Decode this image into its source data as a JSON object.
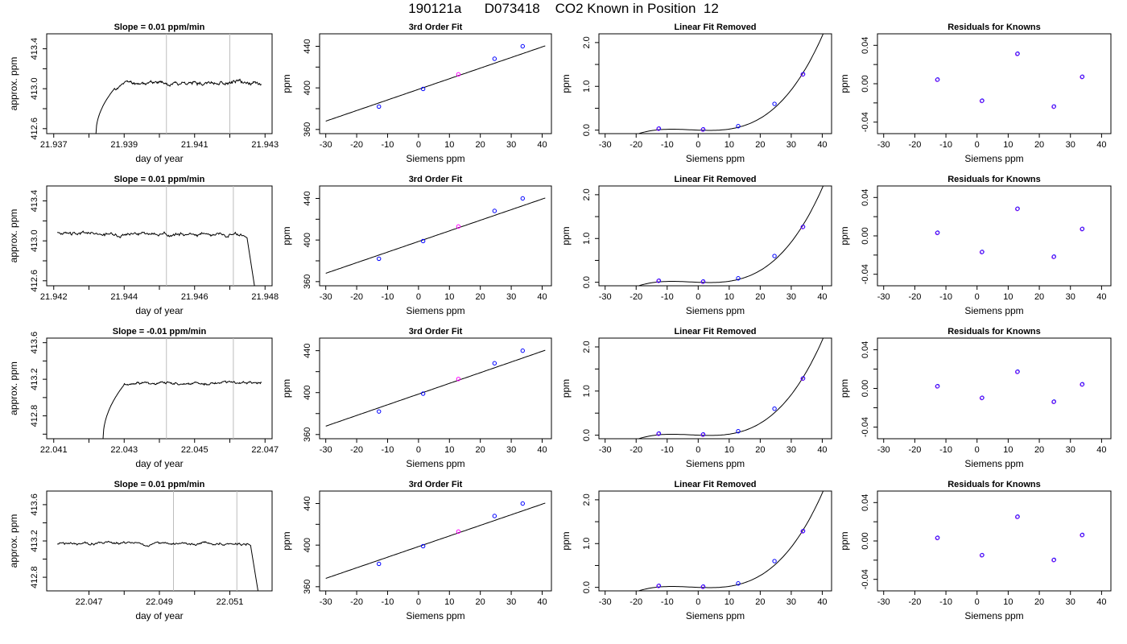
{
  "figure": {
    "title": "190121a      D073418    CO2 Known in Position  12"
  },
  "colors": {
    "frame": "#000000",
    "trace": "#000000",
    "vline": "#bebebe",
    "blue": "#0000ff",
    "magenta": "#ff00ff",
    "purple": "#a020f0",
    "orange": "#ffa500",
    "green": "#00cd00"
  },
  "chart_data": [
    {
      "type": "line",
      "title": "Slope =  0.01  ppm/min",
      "xlabel": "day of year",
      "ylabel": "approx. ppm",
      "xlim": [
        21.9368,
        21.9432
      ],
      "ylim": [
        412.55,
        413.55
      ],
      "xticks": [
        21.937,
        21.938,
        21.939,
        21.94,
        21.941,
        21.942,
        21.943
      ],
      "xtick_labels": [
        "21.937",
        "",
        "21.939",
        "",
        "21.941",
        "",
        "21.943"
      ],
      "yticks": [
        412.6,
        412.8,
        413.0,
        413.2,
        413.4
      ],
      "ytick_labels": [
        "412.6",
        "",
        "413.0",
        "",
        "413.4"
      ],
      "vlines": [
        21.9402,
        21.942
      ],
      "trace": {
        "start": [
          21.9382,
          412.55
        ],
        "rise_end": [
          21.9387,
          412.99
        ],
        "plateau": 413.06,
        "end": 21.9429,
        "noise": 0.025,
        "drop": false,
        "seed": 11
      }
    },
    {
      "type": "line",
      "title": "Slope =  0.01  ppm/min",
      "xlabel": "day of year",
      "ylabel": "approx. ppm",
      "xlim": [
        21.9418,
        21.9482
      ],
      "ylim": [
        412.55,
        413.55
      ],
      "xticks": [
        21.942,
        21.943,
        21.944,
        21.945,
        21.946,
        21.947,
        21.948
      ],
      "xtick_labels": [
        "21.942",
        "",
        "21.944",
        "",
        "21.946",
        "",
        "21.948"
      ],
      "yticks": [
        412.6,
        412.8,
        413.0,
        413.2,
        413.4
      ],
      "ytick_labels": [
        "412.6",
        "",
        "413.0",
        "",
        "413.4"
      ],
      "vlines": [
        21.9452,
        21.9471
      ],
      "trace": {
        "start": [
          21.9421,
          413.06
        ],
        "plateau": 413.07,
        "end": 21.9474,
        "noise": 0.025,
        "drop": true,
        "drop_end": [
          21.9477,
          412.55
        ],
        "seed": 23
      }
    },
    {
      "type": "line",
      "title": "Slope =  -0.01  ppm/min",
      "xlabel": "day of year",
      "ylabel": "approx. ppm",
      "xlim": [
        22.0408,
        22.0472
      ],
      "ylim": [
        412.55,
        413.65
      ],
      "xticks": [
        22.041,
        22.042,
        22.043,
        22.044,
        22.045,
        22.046,
        22.047
      ],
      "xtick_labels": [
        "22.041",
        "",
        "22.043",
        "",
        "22.045",
        "",
        "22.047"
      ],
      "yticks": [
        412.6,
        412.8,
        413.0,
        413.2,
        413.4,
        413.6
      ],
      "ytick_labels": [
        "",
        "412.8",
        "",
        "413.2",
        "",
        "413.6"
      ],
      "vlines": [
        22.0442,
        22.0461
      ],
      "trace": {
        "start": [
          22.0424,
          412.55
        ],
        "rise_end": [
          22.043,
          413.14
        ],
        "plateau": 413.16,
        "end": 22.0469,
        "noise": 0.02,
        "drop": false,
        "seed": 37
      }
    },
    {
      "type": "line",
      "title": "Slope =  0.01  ppm/min",
      "xlabel": "day of year",
      "ylabel": "approx. ppm",
      "xlim": [
        22.0458,
        22.0522
      ],
      "ylim": [
        412.65,
        413.75
      ],
      "xticks": [
        22.047,
        22.048,
        22.049,
        22.05,
        22.051
      ],
      "xtick_labels": [
        "22.047",
        "",
        "22.049",
        "",
        "22.051"
      ],
      "yticks": [
        412.8,
        413.0,
        413.2,
        413.4,
        413.6
      ],
      "ytick_labels": [
        "412.8",
        "",
        "413.2",
        "",
        "413.6"
      ],
      "vlines": [
        22.0494,
        22.0512
      ],
      "trace": {
        "start": [
          22.0461,
          413.16
        ],
        "plateau": 413.17,
        "end": 22.0515,
        "noise": 0.02,
        "drop": true,
        "drop_end": [
          22.0518,
          412.65
        ],
        "seed": 51
      }
    },
    {
      "type": "scatter",
      "title": "3rd Order Fit",
      "xlabel": "Siemens ppm",
      "ylabel": "ppm",
      "xlim": [
        -32,
        43
      ],
      "ylim": [
        356,
        452
      ],
      "xticks": [
        -30,
        -20,
        -10,
        0,
        10,
        20,
        30,
        40
      ],
      "xtick_labels": [
        "-30",
        "-20",
        "-10",
        "0",
        "10",
        "20",
        "30",
        "40"
      ],
      "yticks": [
        360,
        380,
        400,
        420,
        440
      ],
      "ytick_labels": [
        "360",
        "",
        "400",
        "",
        "440"
      ],
      "curve": {
        "x": [
          -30,
          41
        ],
        "coef": [
          398.6,
          1.02,
          0,
          0
        ]
      },
      "points": {
        "x": [
          -12.8,
          1.5,
          12.9,
          24.6,
          33.7
        ],
        "y": [
          382.0,
          399.0,
          413.0,
          428.0,
          440.0
        ],
        "colors": [
          "blue",
          "blue",
          "magenta",
          "blue",
          "blue"
        ]
      }
    },
    {
      "type": "scatter",
      "title": "3rd Order Fit",
      "xlabel": "Siemens ppm",
      "ylabel": "ppm",
      "xlim": [
        -32,
        43
      ],
      "ylim": [
        356,
        452
      ],
      "xticks": [
        -30,
        -20,
        -10,
        0,
        10,
        20,
        30,
        40
      ],
      "xtick_labels": [
        "-30",
        "-20",
        "-10",
        "0",
        "10",
        "20",
        "30",
        "40"
      ],
      "yticks": [
        360,
        380,
        400,
        420,
        440
      ],
      "ytick_labels": [
        "360",
        "",
        "400",
        "",
        "440"
      ],
      "curve": {
        "x": [
          -30,
          41
        ],
        "coef": [
          398.6,
          1.02,
          0,
          0
        ]
      },
      "points": {
        "x": [
          -12.8,
          1.5,
          12.9,
          24.6,
          33.7
        ],
        "y": [
          382.0,
          399.0,
          413.0,
          428.0,
          440.0
        ],
        "colors": [
          "blue",
          "blue",
          "magenta",
          "blue",
          "blue"
        ]
      }
    },
    {
      "type": "scatter",
      "title": "3rd Order Fit",
      "xlabel": "Siemens ppm",
      "ylabel": "ppm",
      "xlim": [
        -32,
        43
      ],
      "ylim": [
        356,
        452
      ],
      "xticks": [
        -30,
        -20,
        -10,
        0,
        10,
        20,
        30,
        40
      ],
      "xtick_labels": [
        "-30",
        "-20",
        "-10",
        "0",
        "10",
        "20",
        "30",
        "40"
      ],
      "yticks": [
        360,
        380,
        400,
        420,
        440
      ],
      "ytick_labels": [
        "360",
        "",
        "400",
        "",
        "440"
      ],
      "curve": {
        "x": [
          -30,
          41
        ],
        "coef": [
          398.6,
          1.02,
          0,
          0
        ]
      },
      "points": {
        "x": [
          -12.8,
          1.5,
          12.9,
          24.6,
          33.7
        ],
        "y": [
          382.0,
          399.0,
          413.0,
          428.0,
          440.0
        ],
        "colors": [
          "blue",
          "blue",
          "magenta",
          "blue",
          "blue"
        ]
      }
    },
    {
      "type": "scatter",
      "title": "3rd Order Fit",
      "xlabel": "Siemens ppm",
      "ylabel": "ppm",
      "xlim": [
        -32,
        43
      ],
      "ylim": [
        356,
        452
      ],
      "xticks": [
        -30,
        -20,
        -10,
        0,
        10,
        20,
        30,
        40
      ],
      "xtick_labels": [
        "-30",
        "-20",
        "-10",
        "0",
        "10",
        "20",
        "30",
        "40"
      ],
      "yticks": [
        360,
        380,
        400,
        420,
        440
      ],
      "ytick_labels": [
        "360",
        "",
        "400",
        "",
        "440"
      ],
      "curve": {
        "x": [
          -30,
          41
        ],
        "coef": [
          398.6,
          1.02,
          0,
          0
        ]
      },
      "points": {
        "x": [
          -12.8,
          1.5,
          12.9,
          24.6,
          33.7
        ],
        "y": [
          382.0,
          399.0,
          413.0,
          428.0,
          440.0
        ],
        "colors": [
          "blue",
          "blue",
          "magenta",
          "blue",
          "blue"
        ]
      }
    },
    {
      "type": "scatter",
      "title": "Linear Fit Removed",
      "xlabel": "Siemens ppm",
      "ylabel": "ppm",
      "xlim": [
        -32,
        43
      ],
      "ylim": [
        -0.08,
        2.2
      ],
      "xticks": [
        -30,
        -20,
        -10,
        0,
        10,
        20,
        30,
        40
      ],
      "xtick_labels": [
        "-30",
        "-20",
        "-10",
        "0",
        "10",
        "20",
        "30",
        "40"
      ],
      "yticks": [
        0,
        0.5,
        1.0,
        1.5,
        2.0
      ],
      "ytick_labels": [
        "0.0",
        "",
        "1.0",
        "",
        "2.0"
      ],
      "curve": {
        "x": [
          -30,
          41
        ],
        "coef": [
          0,
          -0.00278,
          0.000214,
          3e-05
        ]
      },
      "points": {
        "x": [
          -12.8,
          1.5,
          12.9,
          24.6,
          33.7
        ],
        "y": [
          0.03,
          0.01,
          0.09,
          0.6,
          1.27
        ],
        "colors": [
          "purple",
          "purple",
          "blue",
          "blue",
          "purple"
        ]
      }
    },
    {
      "type": "scatter",
      "title": "Linear Fit Removed",
      "xlabel": "Siemens ppm",
      "ylabel": "ppm",
      "xlim": [
        -32,
        43
      ],
      "ylim": [
        -0.08,
        2.2
      ],
      "xticks": [
        -30,
        -20,
        -10,
        0,
        10,
        20,
        30,
        40
      ],
      "xtick_labels": [
        "-30",
        "-20",
        "-10",
        "0",
        "10",
        "20",
        "30",
        "40"
      ],
      "yticks": [
        0,
        0.5,
        1.0,
        1.5,
        2.0
      ],
      "ytick_labels": [
        "0.0",
        "",
        "1.0",
        "",
        "2.0"
      ],
      "curve": {
        "x": [
          -30,
          41
        ],
        "coef": [
          0,
          -0.00278,
          0.000214,
          3e-05
        ]
      },
      "points": {
        "x": [
          -12.8,
          1.5,
          12.9,
          24.6,
          33.7
        ],
        "y": [
          0.03,
          0.01,
          0.09,
          0.6,
          1.26
        ],
        "colors": [
          "purple",
          "purple",
          "blue",
          "blue",
          "purple"
        ]
      }
    },
    {
      "type": "scatter",
      "title": "Linear Fit Removed",
      "xlabel": "Siemens ppm",
      "ylabel": "ppm",
      "xlim": [
        -32,
        43
      ],
      "ylim": [
        -0.08,
        2.2
      ],
      "xticks": [
        -30,
        -20,
        -10,
        0,
        10,
        20,
        30,
        40
      ],
      "xtick_labels": [
        "-30",
        "-20",
        "-10",
        "0",
        "10",
        "20",
        "30",
        "40"
      ],
      "yticks": [
        0,
        0.5,
        1.0,
        1.5,
        2.0
      ],
      "ytick_labels": [
        "0.0",
        "",
        "1.0",
        "",
        "2.0"
      ],
      "curve": {
        "x": [
          -30,
          41
        ],
        "coef": [
          0,
          -0.00278,
          0.000214,
          3e-05
        ]
      },
      "points": {
        "x": [
          -12.8,
          1.5,
          12.9,
          24.6,
          33.7
        ],
        "y": [
          0.03,
          0.01,
          0.09,
          0.6,
          1.28
        ],
        "colors": [
          "purple",
          "purple",
          "blue",
          "blue",
          "purple"
        ]
      }
    },
    {
      "type": "scatter",
      "title": "Linear Fit Removed",
      "xlabel": "Siemens ppm",
      "ylabel": "ppm",
      "xlim": [
        -32,
        43
      ],
      "ylim": [
        -0.08,
        2.2
      ],
      "xticks": [
        -30,
        -20,
        -10,
        0,
        10,
        20,
        30,
        40
      ],
      "xtick_labels": [
        "-30",
        "-20",
        "-10",
        "0",
        "10",
        "20",
        "30",
        "40"
      ],
      "yticks": [
        0,
        0.5,
        1.0,
        1.5,
        2.0
      ],
      "ytick_labels": [
        "0.0",
        "",
        "1.0",
        "",
        "2.0"
      ],
      "curve": {
        "x": [
          -30,
          41
        ],
        "coef": [
          0,
          -0.00278,
          0.000214,
          3e-05
        ]
      },
      "points": {
        "x": [
          -12.8,
          1.5,
          12.9,
          24.6,
          33.7
        ],
        "y": [
          0.03,
          0.01,
          0.09,
          0.6,
          1.28
        ],
        "colors": [
          "purple",
          "purple",
          "blue",
          "blue",
          "purple"
        ]
      }
    },
    {
      "type": "scatter",
      "title": "Residuals for Knowns",
      "xlabel": "Siemens ppm",
      "ylabel": "ppm",
      "xlim": [
        -32,
        43
      ],
      "ylim": [
        -0.052,
        0.052
      ],
      "xticks": [
        -30,
        -20,
        -10,
        0,
        10,
        20,
        30,
        40
      ],
      "xtick_labels": [
        "-30",
        "-20",
        "-10",
        "0",
        "10",
        "20",
        "30",
        "40"
      ],
      "yticks": [
        -0.04,
        -0.02,
        0,
        0.02,
        0.04
      ],
      "ytick_labels": [
        "-0.04",
        "",
        "0.00",
        "",
        "0.04"
      ],
      "points": {
        "x": [
          -12.8,
          1.5,
          12.9,
          24.6,
          33.7
        ],
        "y": [
          0.004,
          -0.018,
          0.031,
          -0.024,
          0.007
        ],
        "colors": [
          "purple",
          "purple",
          "purple",
          "purple",
          "purple"
        ]
      }
    },
    {
      "type": "scatter",
      "title": "Residuals for Knowns",
      "xlabel": "Siemens ppm",
      "ylabel": "ppm",
      "xlim": [
        -32,
        43
      ],
      "ylim": [
        -0.052,
        0.052
      ],
      "xticks": [
        -30,
        -20,
        -10,
        0,
        10,
        20,
        30,
        40
      ],
      "xtick_labels": [
        "-30",
        "-20",
        "-10",
        "0",
        "10",
        "20",
        "30",
        "40"
      ],
      "yticks": [
        -0.04,
        -0.02,
        0,
        0.02,
        0.04
      ],
      "ytick_labels": [
        "-0.04",
        "",
        "0.00",
        "",
        "0.04"
      ],
      "points": {
        "x": [
          -12.8,
          1.5,
          12.9,
          24.6,
          33.7
        ],
        "y": [
          0.003,
          -0.017,
          0.028,
          -0.022,
          0.007
        ],
        "colors": [
          "purple",
          "purple",
          "purple",
          "purple",
          "purple"
        ]
      }
    },
    {
      "type": "scatter",
      "title": "Residuals for Knowns",
      "xlabel": "Siemens ppm",
      "ylabel": "ppm",
      "xlim": [
        -32,
        43
      ],
      "ylim": [
        -0.052,
        0.052
      ],
      "xticks": [
        -30,
        -20,
        -10,
        0,
        10,
        20,
        30,
        40
      ],
      "xtick_labels": [
        "-30",
        "-20",
        "-10",
        "0",
        "10",
        "20",
        "30",
        "40"
      ],
      "yticks": [
        -0.04,
        -0.02,
        0,
        0.02,
        0.04
      ],
      "ytick_labels": [
        "-0.04",
        "",
        "0.00",
        "",
        "0.04"
      ],
      "points": {
        "x": [
          -12.8,
          1.5,
          12.9,
          24.6,
          33.7
        ],
        "y": [
          0.002,
          -0.01,
          0.017,
          -0.014,
          0.004
        ],
        "colors": [
          "purple",
          "purple",
          "purple",
          "purple",
          "purple"
        ]
      }
    },
    {
      "type": "scatter",
      "title": "Residuals for Knowns",
      "xlabel": "Siemens ppm",
      "ylabel": "ppm",
      "xlim": [
        -32,
        43
      ],
      "ylim": [
        -0.052,
        0.052
      ],
      "xticks": [
        -30,
        -20,
        -10,
        0,
        10,
        20,
        30,
        40
      ],
      "xtick_labels": [
        "-30",
        "-20",
        "-10",
        "0",
        "10",
        "20",
        "30",
        "40"
      ],
      "yticks": [
        -0.04,
        -0.02,
        0,
        0.02,
        0.04
      ],
      "ytick_labels": [
        "-0.04",
        "",
        "0.00",
        "",
        "0.04"
      ],
      "points": {
        "x": [
          -12.8,
          1.5,
          12.9,
          24.6,
          33.7
        ],
        "y": [
          0.003,
          -0.015,
          0.025,
          -0.02,
          0.006
        ],
        "colors": [
          "purple",
          "purple",
          "purple",
          "purple",
          "purple"
        ]
      }
    }
  ]
}
